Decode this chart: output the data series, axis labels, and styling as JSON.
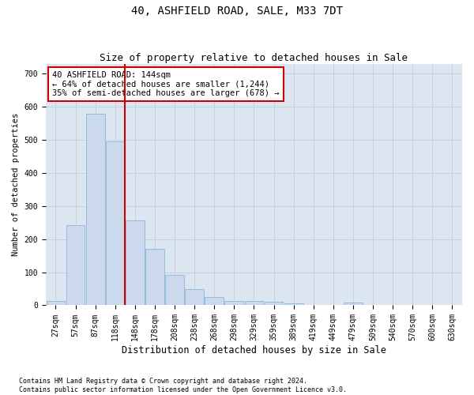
{
  "title": "40, ASHFIELD ROAD, SALE, M33 7DT",
  "subtitle": "Size of property relative to detached houses in Sale",
  "xlabel": "Distribution of detached houses by size in Sale",
  "ylabel": "Number of detached properties",
  "bar_color": "#ccd9ed",
  "bar_edge_color": "#7bafd4",
  "bin_labels": [
    "27sqm",
    "57sqm",
    "87sqm",
    "118sqm",
    "148sqm",
    "178sqm",
    "208sqm",
    "238sqm",
    "268sqm",
    "298sqm",
    "329sqm",
    "359sqm",
    "389sqm",
    "419sqm",
    "449sqm",
    "479sqm",
    "509sqm",
    "540sqm",
    "570sqm",
    "600sqm",
    "630sqm"
  ],
  "bar_values": [
    13,
    243,
    578,
    495,
    257,
    170,
    92,
    50,
    25,
    13,
    12,
    10,
    7,
    0,
    0,
    8,
    0,
    0,
    0,
    0,
    0
  ],
  "red_line_bin_index": 4,
  "property_line_label": "40 ASHFIELD ROAD: 144sqm",
  "annotation_line1": "← 64% of detached houses are smaller (1,244)",
  "annotation_line2": "35% of semi-detached houses are larger (678) →",
  "red_line_color": "#cc0000",
  "annotation_font_size": 7.5,
  "title_font_size": 10,
  "subtitle_font_size": 9,
  "xlabel_font_size": 8.5,
  "ylabel_font_size": 7.5,
  "tick_font_size": 7,
  "footer_text": "Contains HM Land Registry data © Crown copyright and database right 2024.\nContains public sector information licensed under the Open Government Licence v3.0.",
  "grid_color": "#c8d0dc",
  "bg_color": "#dce6f0",
  "ylim": [
    0,
    730
  ],
  "yticks": [
    0,
    100,
    200,
    300,
    400,
    500,
    600,
    700
  ]
}
